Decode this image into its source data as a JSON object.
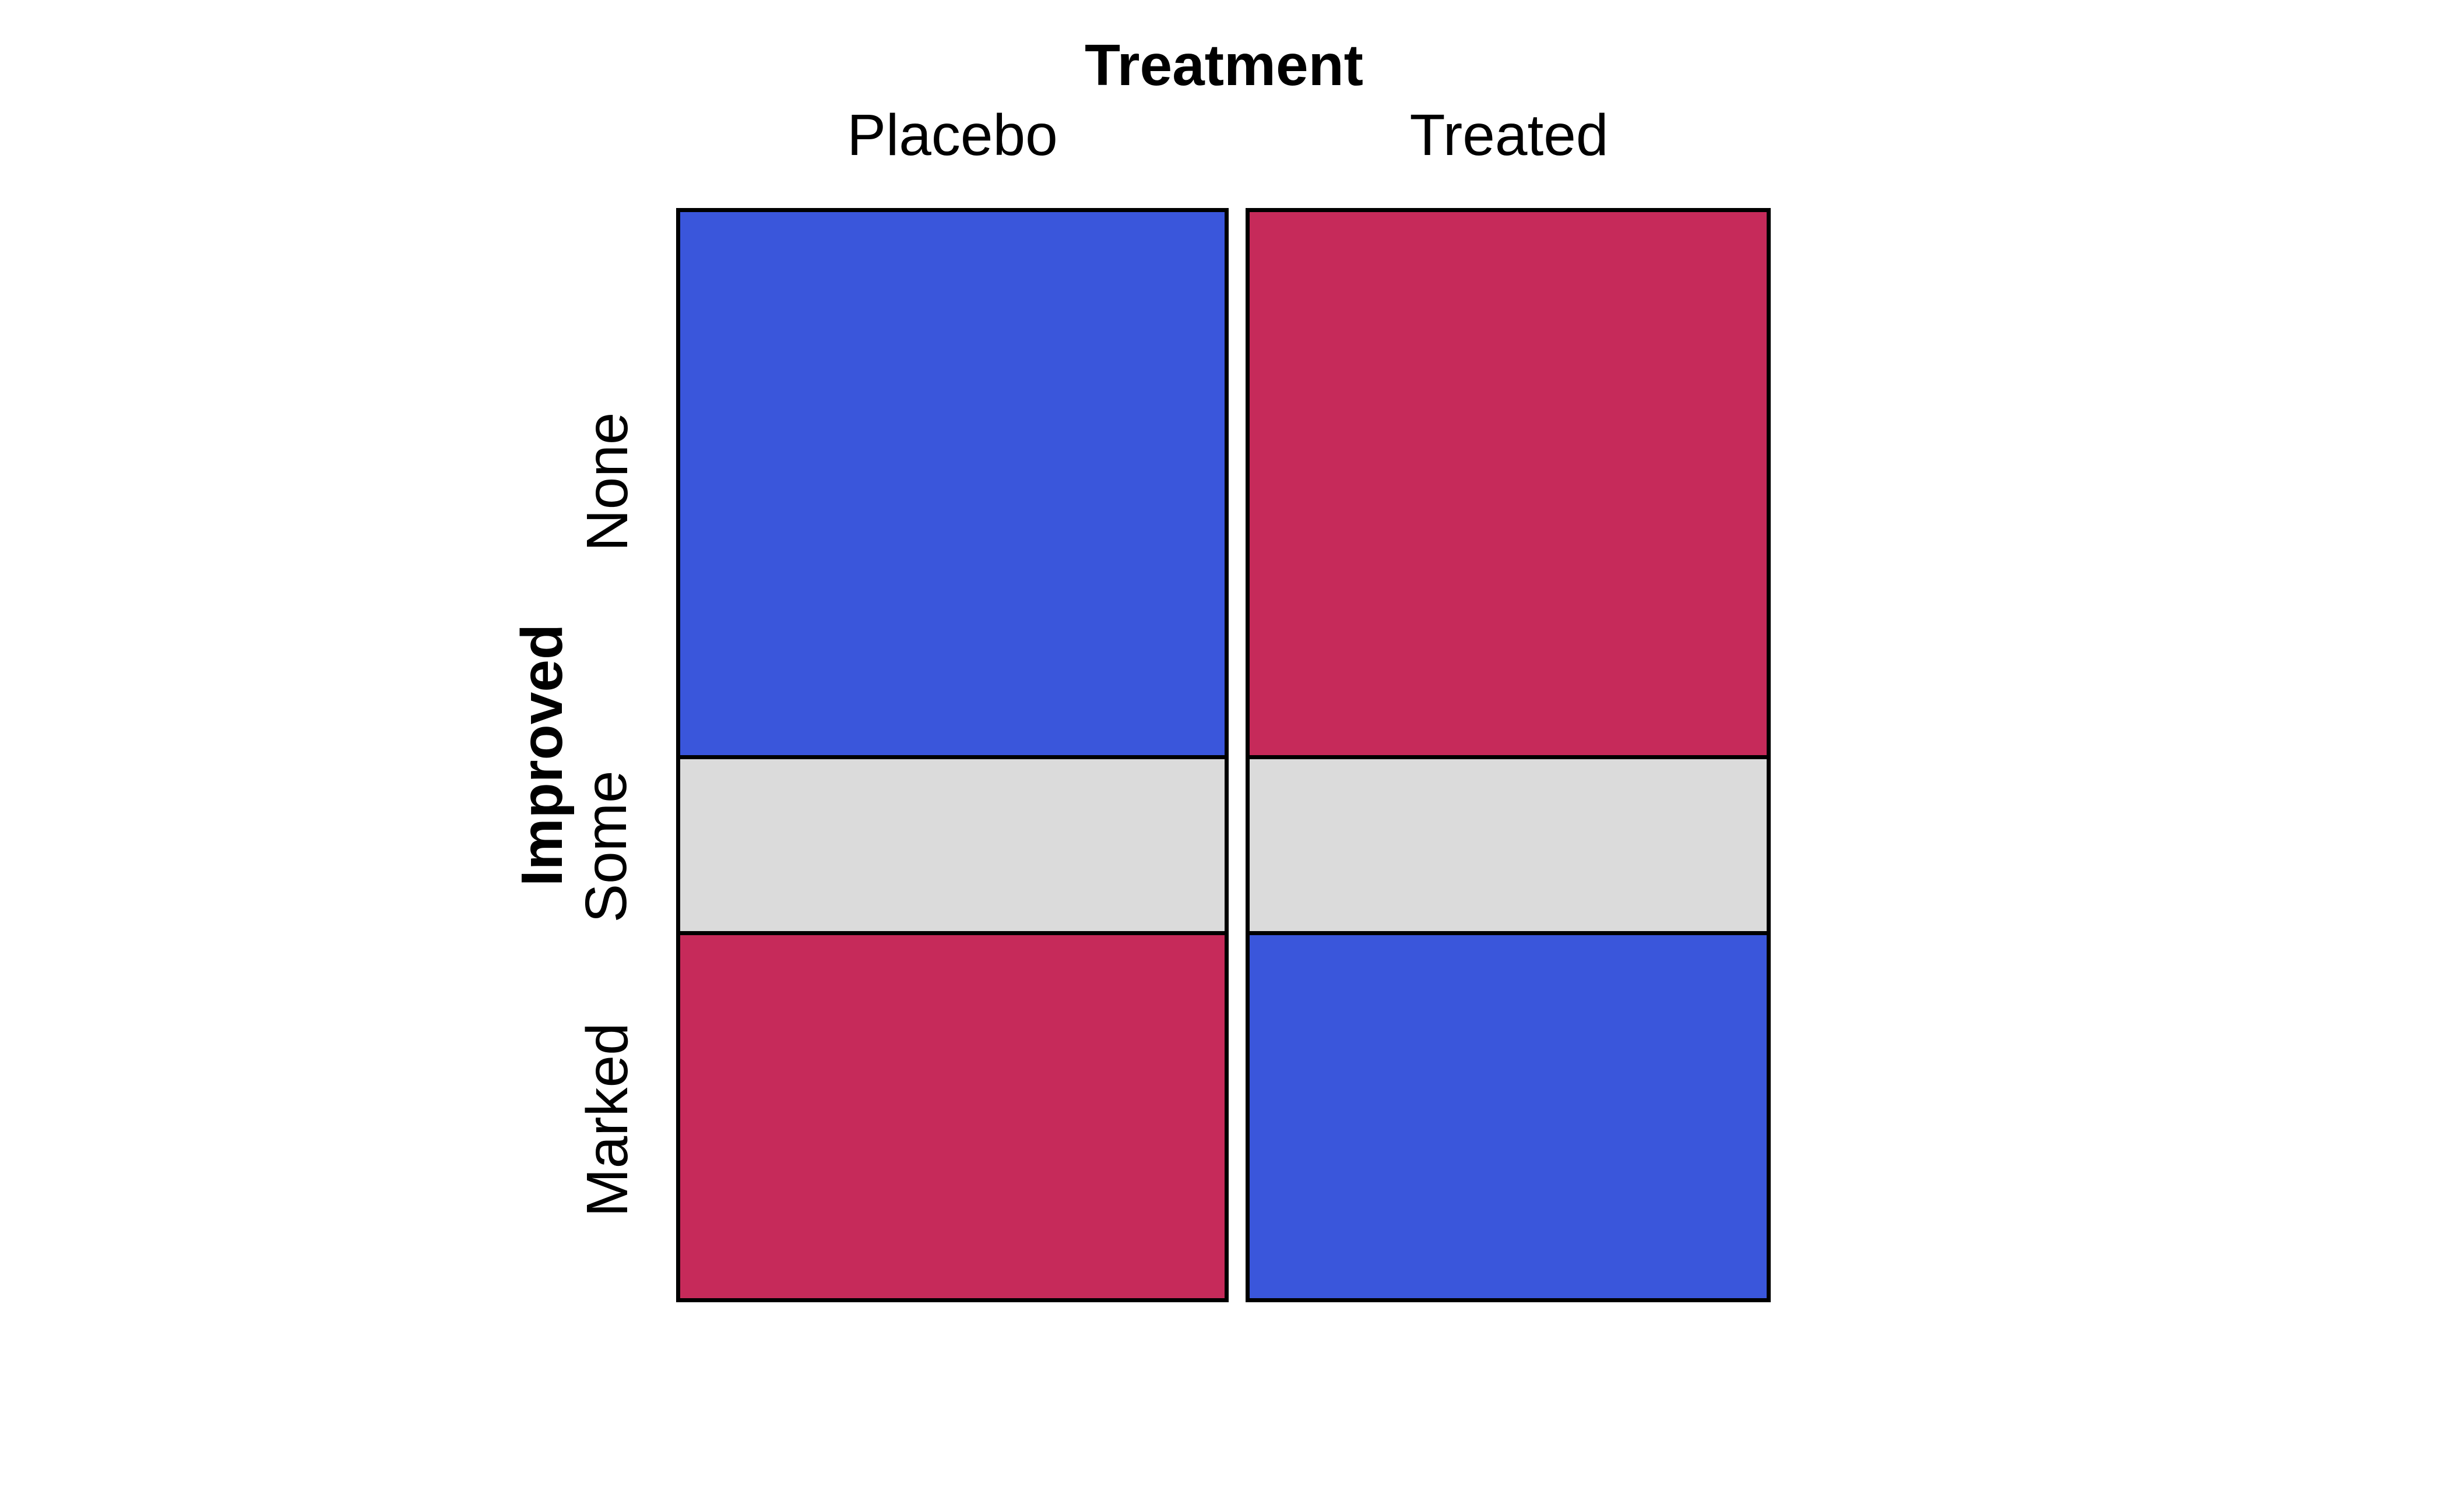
{
  "figure": {
    "title": "Treatment",
    "y_axis_title": "Improved"
  },
  "chart_data": {
    "type": "mosaic",
    "title": "Treatment",
    "x_variable": "Treatment",
    "y_variable": "Improved",
    "x_categories": [
      "Placebo",
      "Treated"
    ],
    "y_categories": [
      "None",
      "Some",
      "Marked"
    ],
    "column_width_fractions": [
      0.513,
      0.487
    ],
    "row_height_fractions": [
      0.5,
      0.166,
      0.334
    ],
    "row_height_percents": [
      "50%",
      "16.6%",
      "33.4%"
    ],
    "cell_colors": {
      "Placebo": {
        "None": "#3A56DB",
        "Some": "#DBDBDB",
        "Marked": "#C62A5A"
      },
      "Treated": {
        "None": "#C62A5A",
        "Some": "#DBDBDB",
        "Marked": "#3A56DB"
      }
    },
    "palette": {
      "blue": "#3A56DB",
      "red": "#C62A5A",
      "gray": "#DBDBDB",
      "border": "#000000",
      "background": "#FFFFFF"
    },
    "legend": "none",
    "grid": "off",
    "axis_ticks": "none"
  }
}
